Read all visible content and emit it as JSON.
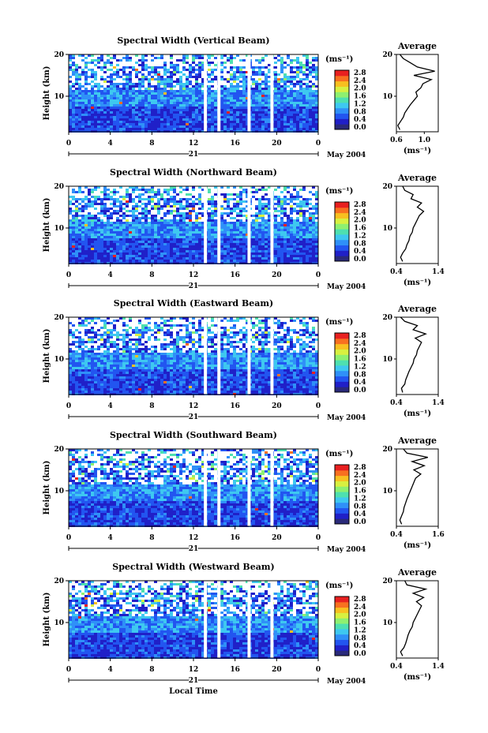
{
  "figure": {
    "date_label": "May 2004",
    "day_label": "21",
    "xlabel": "Local Time",
    "ylabel": "Height (km)",
    "units_label": "(ms⁻¹)",
    "avg_title": "Average",
    "avg_xlabel": "(ms⁻¹)"
  },
  "colorbar": {
    "ticks": [
      "0.0",
      "0.4",
      "0.8",
      "1.2",
      "1.6",
      "2.0",
      "2.4",
      "2.8"
    ],
    "colors": [
      "#2a2a7a",
      "#2020c8",
      "#2255f0",
      "#2f90f8",
      "#3ec8f0",
      "#4ee0b0",
      "#8ef070",
      "#d8f040",
      "#f8c020",
      "#f87020",
      "#e82020"
    ]
  },
  "chart_data": [
    {
      "type": "heatmap",
      "title": "Spectral Width (Vertical Beam)",
      "x_ticks": [
        "0",
        "4",
        "8",
        "12",
        "16",
        "20",
        "0"
      ],
      "xlim": [
        0,
        24
      ],
      "y_ticks": [
        "10",
        "20"
      ],
      "ylim": [
        1.5,
        20
      ],
      "data_gaps_hours": [
        [
          13.0,
          13.3
        ],
        [
          14.3,
          14.6
        ],
        [
          17.2,
          17.5
        ],
        [
          19.4,
          19.7
        ]
      ],
      "average_profile": {
        "title": "Average",
        "x_ticks": [
          "0.6",
          "1.0"
        ],
        "xlim": [
          0.6,
          1.2
        ],
        "height_km": [
          2,
          3,
          4,
          5,
          6,
          7,
          8,
          9,
          10,
          11,
          12,
          13,
          14,
          15,
          16,
          17,
          18,
          19,
          20
        ],
        "values": [
          0.65,
          0.62,
          0.66,
          0.7,
          0.72,
          0.76,
          0.8,
          0.85,
          0.9,
          0.88,
          0.95,
          0.98,
          1.1,
          0.85,
          1.15,
          0.9,
          0.8,
          0.7,
          0.65
        ]
      }
    },
    {
      "type": "heatmap",
      "title": "Spectral Width (Northward Beam)",
      "x_ticks": [
        "0",
        "4",
        "8",
        "12",
        "16",
        "20",
        "0"
      ],
      "xlim": [
        0,
        24
      ],
      "y_ticks": [
        "10",
        "20"
      ],
      "ylim": [
        1.5,
        20
      ],
      "data_gaps_hours": [
        [
          13.0,
          13.3
        ],
        [
          14.3,
          14.6
        ],
        [
          17.2,
          17.5
        ],
        [
          19.4,
          19.7
        ]
      ],
      "average_profile": {
        "title": "Average",
        "x_ticks": [
          "0.4",
          "1.4"
        ],
        "xlim": [
          0.4,
          1.4
        ],
        "height_km": [
          2,
          3,
          4,
          5,
          6,
          7,
          8,
          9,
          10,
          11,
          12,
          13,
          14,
          15,
          16,
          17,
          18,
          19,
          20
        ],
        "values": [
          0.55,
          0.5,
          0.55,
          0.62,
          0.65,
          0.7,
          0.72,
          0.78,
          0.8,
          0.85,
          0.9,
          0.95,
          1.05,
          0.9,
          1.0,
          0.75,
          0.8,
          0.6,
          0.55
        ]
      }
    },
    {
      "type": "heatmap",
      "title": "Spectral Width (Eastward Beam)",
      "x_ticks": [
        "0",
        "4",
        "8",
        "12",
        "16",
        "20",
        "0"
      ],
      "xlim": [
        0,
        24
      ],
      "y_ticks": [
        "10",
        "20"
      ],
      "ylim": [
        1.5,
        20
      ],
      "data_gaps_hours": [
        [
          13.0,
          13.3
        ],
        [
          14.3,
          14.6
        ],
        [
          17.2,
          17.5
        ],
        [
          19.4,
          19.7
        ]
      ],
      "average_profile": {
        "title": "Average",
        "x_ticks": [
          "0.4",
          "1.4"
        ],
        "xlim": [
          0.4,
          1.4
        ],
        "height_km": [
          2,
          3,
          4,
          5,
          6,
          7,
          8,
          9,
          10,
          11,
          12,
          13,
          14,
          15,
          16,
          17,
          18,
          19,
          20
        ],
        "values": [
          0.55,
          0.52,
          0.6,
          0.62,
          0.66,
          0.7,
          0.75,
          0.8,
          0.82,
          0.88,
          0.9,
          0.95,
          1.0,
          0.85,
          1.1,
          0.8,
          0.9,
          0.6,
          0.5
        ]
      }
    },
    {
      "type": "heatmap",
      "title": "Spectral Width (Southward Beam)",
      "x_ticks": [
        "0",
        "4",
        "8",
        "12",
        "16",
        "20",
        "0"
      ],
      "xlim": [
        0,
        24
      ],
      "y_ticks": [
        "10",
        "20"
      ],
      "ylim": [
        1.5,
        20
      ],
      "data_gaps_hours": [
        [
          13.0,
          13.3
        ],
        [
          14.3,
          14.6
        ],
        [
          17.2,
          17.5
        ],
        [
          19.4,
          19.7
        ]
      ],
      "average_profile": {
        "title": "Average",
        "x_ticks": [
          "0.4",
          "1.6"
        ],
        "xlim": [
          0.4,
          1.6
        ],
        "height_km": [
          2,
          3,
          4,
          5,
          6,
          7,
          8,
          9,
          10,
          11,
          12,
          13,
          14,
          15,
          16,
          17,
          18,
          19,
          20
        ],
        "values": [
          0.55,
          0.5,
          0.55,
          0.6,
          0.62,
          0.66,
          0.7,
          0.75,
          0.8,
          0.85,
          0.9,
          0.95,
          1.1,
          0.9,
          1.2,
          0.85,
          1.3,
          0.7,
          0.6
        ]
      }
    },
    {
      "type": "heatmap",
      "title": "Spectral Width (Westward Beam)",
      "x_ticks": [
        "0",
        "4",
        "8",
        "12",
        "16",
        "20",
        "0"
      ],
      "xlim": [
        0,
        24
      ],
      "y_ticks": [
        "10",
        "20"
      ],
      "ylim": [
        1.5,
        20
      ],
      "data_gaps_hours": [
        [
          13.0,
          13.3
        ],
        [
          14.3,
          14.6
        ],
        [
          17.2,
          17.5
        ],
        [
          19.4,
          19.7
        ]
      ],
      "average_profile": {
        "title": "Average",
        "x_ticks": [
          "0.4",
          "1.4"
        ],
        "xlim": [
          0.4,
          1.4
        ],
        "height_km": [
          2,
          3,
          4,
          5,
          6,
          7,
          8,
          9,
          10,
          11,
          12,
          13,
          14,
          15,
          16,
          17,
          18,
          19,
          20
        ],
        "values": [
          0.55,
          0.5,
          0.58,
          0.62,
          0.65,
          0.68,
          0.72,
          0.78,
          0.8,
          0.85,
          0.9,
          0.95,
          1.0,
          0.88,
          1.05,
          0.8,
          1.1,
          0.65,
          0.6
        ]
      }
    }
  ]
}
